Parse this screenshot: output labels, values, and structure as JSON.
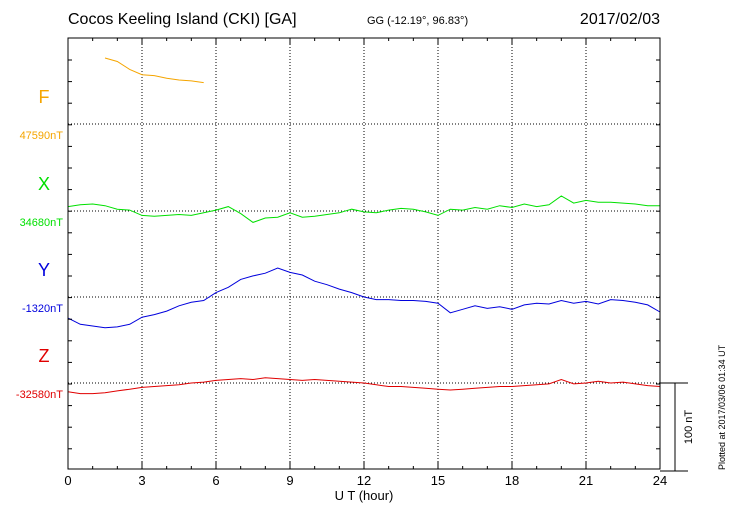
{
  "header": {
    "title": "Cocos Keeling Island (CKI)  [GA]",
    "coords": "GG (-12.19°,  96.83°)",
    "date": "2017/02/03"
  },
  "footer": {
    "plotted": "Plotted at 2017/03/06 01:34 UT",
    "scale_label": "100 nT"
  },
  "chart_data": {
    "type": "line",
    "xlabel": "U T (hour)",
    "ylabel": "",
    "xlim": [
      0,
      24
    ],
    "xticks": [
      0,
      3,
      6,
      9,
      12,
      15,
      18,
      21,
      24
    ],
    "scale_nT": 100,
    "grid": true,
    "series": [
      {
        "name": "F",
        "baseline": "47590nT",
        "color": "#f5a500",
        "x": [
          1.5,
          2.0,
          2.5,
          3.0,
          3.5,
          4.0,
          4.5,
          5.0,
          5.5
        ],
        "offset_nT": [
          75,
          71,
          62,
          56,
          55,
          52,
          50,
          49,
          47
        ]
      },
      {
        "name": "X",
        "baseline": "34680nT",
        "color": "#00e000",
        "x": [
          0,
          0.5,
          1,
          1.5,
          2,
          2.5,
          3,
          3.5,
          4,
          4.5,
          5,
          5.5,
          6,
          6.5,
          7,
          7.5,
          8,
          8.5,
          9,
          9.5,
          10,
          10.5,
          11,
          11.5,
          12,
          12.5,
          13,
          13.5,
          14,
          14.5,
          15,
          15.5,
          16,
          16.5,
          17,
          17.5,
          18,
          18.5,
          19,
          19.5,
          20,
          20.5,
          21,
          21.5,
          22,
          22.5,
          23,
          23.5,
          24
        ],
        "offset_nT": [
          5,
          7,
          8,
          6,
          2,
          1,
          -5,
          -6,
          -5,
          -4,
          -5,
          -2,
          1,
          5,
          -3,
          -13,
          -8,
          -7,
          -2,
          -7,
          -6,
          -4,
          -2,
          2,
          -1,
          -2,
          1,
          3,
          2,
          -1,
          -5,
          2,
          1,
          4,
          2,
          6,
          4,
          8,
          5,
          7,
          17,
          9,
          12,
          10,
          10,
          9,
          8,
          6,
          6
        ]
      },
      {
        "name": "Y",
        "baseline": "-1320nT",
        "color": "#0000dd",
        "x": [
          0,
          0.5,
          1,
          1.5,
          2,
          2.5,
          3,
          3.5,
          4,
          4.5,
          5,
          5.5,
          6,
          6.5,
          7,
          7.5,
          8,
          8.5,
          9,
          9.5,
          10,
          10.5,
          11,
          11.5,
          12,
          12.5,
          13,
          13.5,
          14,
          14.5,
          15,
          15.5,
          16,
          16.5,
          17,
          17.5,
          18,
          18.5,
          19,
          19.5,
          20,
          20.5,
          21,
          21.5,
          22,
          22.5,
          23,
          23.5,
          24
        ],
        "offset_nT": [
          -24,
          -31,
          -33,
          -35,
          -34,
          -31,
          -23,
          -20,
          -16,
          -10,
          -6,
          -4,
          5,
          11,
          20,
          24,
          27,
          33,
          28,
          25,
          18,
          14,
          9,
          5,
          0,
          -3,
          -3,
          -4,
          -4,
          -5,
          -7,
          -18,
          -14,
          -10,
          -13,
          -11,
          -14,
          -9,
          -7,
          -8,
          -4,
          -7,
          -5,
          -8,
          -3,
          -4,
          -6,
          -9,
          -17
        ]
      },
      {
        "name": "Z",
        "baseline": "-32580nT",
        "color": "#e00000",
        "x": [
          0,
          0.5,
          1,
          1.5,
          2,
          2.5,
          3,
          3.5,
          4,
          4.5,
          5,
          5.5,
          6,
          6.5,
          7,
          7.5,
          8,
          8.5,
          9,
          9.5,
          10,
          10.5,
          11,
          11.5,
          12,
          12.5,
          13,
          13.5,
          14,
          14.5,
          15,
          15.5,
          16,
          16.5,
          17,
          17.5,
          18,
          18.5,
          19,
          19.5,
          20,
          20.5,
          21,
          21.5,
          22,
          22.5,
          23,
          23.5,
          24
        ],
        "offset_nT": [
          -10,
          -12,
          -12,
          -11,
          -9,
          -7,
          -5,
          -4,
          -3,
          -2,
          0,
          1,
          3,
          4,
          5,
          4,
          6,
          5,
          4,
          3,
          4,
          3,
          2,
          1,
          0,
          -2,
          -4,
          -4,
          -5,
          -6,
          -7,
          -8,
          -7,
          -6,
          -5,
          -4,
          -4,
          -3,
          -2,
          -1,
          4,
          -1,
          0,
          2,
          0,
          1,
          -1,
          -3,
          -4
        ]
      }
    ]
  }
}
